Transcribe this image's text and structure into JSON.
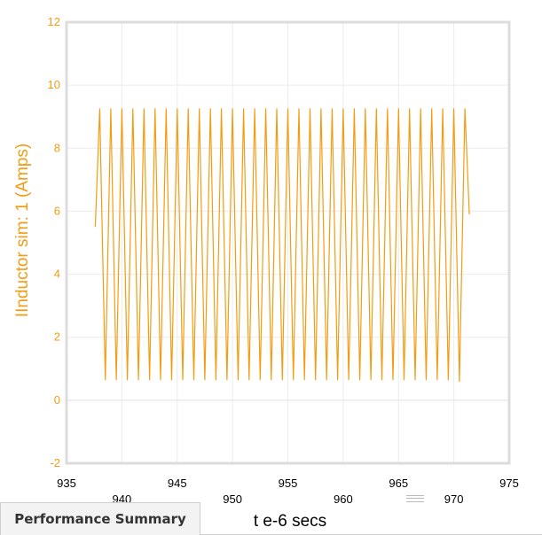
{
  "chart_data": {
    "type": "line",
    "xlabel": "t e-6 secs",
    "ylabel": "IInductor sim:  1 (Amps)",
    "xlim": [
      935,
      975
    ],
    "ylim": [
      -2,
      12
    ],
    "x_ticks_upper": [
      "935",
      "945",
      "955",
      "965",
      "975"
    ],
    "x_ticks_lower": [
      "940",
      "950",
      "960",
      "970"
    ],
    "x_tick_values_upper": [
      935,
      945,
      955,
      965,
      975
    ],
    "x_tick_values_lower": [
      940,
      950,
      960,
      970
    ],
    "y_ticks": [
      "-2",
      "0",
      "2",
      "4",
      "6",
      "8",
      "10",
      "12"
    ],
    "y_tick_values": [
      -2,
      0,
      2,
      4,
      6,
      8,
      10,
      12
    ],
    "grid": true,
    "series_color": "#f39c12",
    "series": [
      {
        "x": [
          937.6,
          938.0,
          938.5,
          939.0,
          939.5,
          940.0,
          940.5,
          941.0,
          941.5,
          942.0,
          942.5,
          943.0,
          943.5,
          944.0,
          944.5,
          945.0,
          945.5,
          946.0,
          946.5,
          947.0,
          947.5,
          948.0,
          948.5,
          949.0,
          949.5,
          950.0,
          950.5,
          951.0,
          951.5,
          952.0,
          952.5,
          953.0,
          953.5,
          954.0,
          954.5,
          955.0,
          955.5,
          956.0,
          956.5,
          957.0,
          957.5,
          958.0,
          958.5,
          959.0,
          959.5,
          960.0,
          960.5,
          961.0,
          961.5,
          962.0,
          962.5,
          963.0,
          963.5,
          964.0,
          964.5,
          965.0,
          965.5,
          966.0,
          966.5,
          967.0,
          967.5,
          968.0,
          968.5,
          969.0,
          969.5,
          970.0,
          970.5,
          971.0,
          971.4
        ],
        "y": [
          5.5,
          9.25,
          0.65,
          9.25,
          0.65,
          9.25,
          0.65,
          9.25,
          0.65,
          9.25,
          0.65,
          9.25,
          0.65,
          9.25,
          0.65,
          9.25,
          0.65,
          9.25,
          0.65,
          9.25,
          0.65,
          9.25,
          0.65,
          9.25,
          0.65,
          9.25,
          0.65,
          9.25,
          0.65,
          9.25,
          0.65,
          9.25,
          0.65,
          9.25,
          0.65,
          9.25,
          0.65,
          9.25,
          0.65,
          9.25,
          0.65,
          9.25,
          0.65,
          9.25,
          0.65,
          9.25,
          0.65,
          9.25,
          0.65,
          9.25,
          0.65,
          9.25,
          0.65,
          9.25,
          0.65,
          9.25,
          0.65,
          9.25,
          0.65,
          9.25,
          0.65,
          9.25,
          0.65,
          9.25,
          0.65,
          9.25,
          0.6,
          9.25,
          5.9
        ]
      }
    ]
  },
  "tab": {
    "label": "Performance Summary"
  }
}
